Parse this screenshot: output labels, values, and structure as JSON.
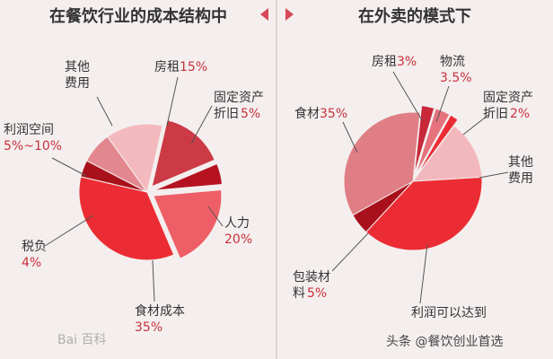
{
  "watermark": "Bai 百科",
  "source": "头条 @餐饮创业首选",
  "chart_data": [
    {
      "type": "pie",
      "title": "在餐饮行业的成本结构中",
      "slices": [
        {
          "label": "房租",
          "value_text": "15%",
          "value": 15,
          "color": "#cc3a46"
        },
        {
          "label": "固定资产折旧",
          "value_text": "5%",
          "value": 5,
          "color": "#b5121f"
        },
        {
          "label": "人力",
          "value_text": "20%",
          "value": 20,
          "color": "#ee5e66"
        },
        {
          "label": "食材成本",
          "value_text": "35%",
          "value": 35,
          "color": "#ec2c34"
        },
        {
          "label": "税负",
          "value_text": "4%",
          "value": 4,
          "color": "#a8111c"
        },
        {
          "label": "利润空间",
          "value_text": "5%~10%",
          "value": 7.5,
          "color": "#e3878e"
        },
        {
          "label": "其他费用",
          "value_text": "",
          "value": 13.5,
          "color": "#f4b9bd"
        }
      ]
    },
    {
      "type": "pie",
      "title": "在外卖的模式下",
      "slices": [
        {
          "label": "房租",
          "value_text": "3%",
          "value": 3,
          "color": "#c8283a"
        },
        {
          "label": "物流",
          "value_text": "3.5%",
          "value": 3.5,
          "color": "#e5727c"
        },
        {
          "label": "固定资产折旧",
          "value_text": "2%",
          "value": 2,
          "color": "#ec2c34"
        },
        {
          "label": "其他费用",
          "value_text": "",
          "value": 14,
          "color": "#f3b8bd"
        },
        {
          "label": "利润可以达到",
          "value_text": "",
          "value": 38,
          "color": "#ec2c34"
        },
        {
          "label": "包装材料",
          "value_text": "5%",
          "value": 5,
          "color": "#a8111c"
        },
        {
          "label": "食材",
          "value_text": "35%",
          "value": 35,
          "color": "#e07e86"
        }
      ]
    }
  ]
}
